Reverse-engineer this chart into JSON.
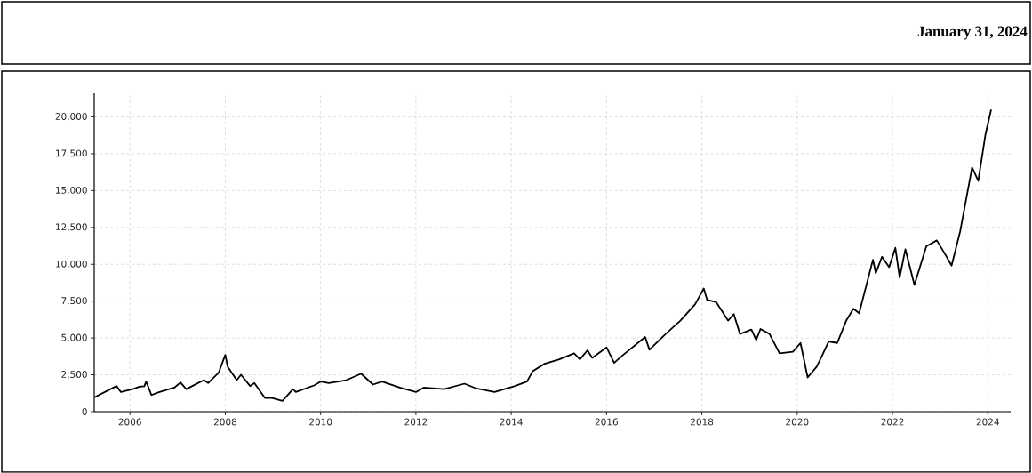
{
  "chart_data": {
    "type": "line",
    "title": "January 31, 2024",
    "x": [
      2005.25,
      2005.72,
      2005.81,
      2006.06,
      2006.2,
      2006.3,
      2006.34,
      2006.45,
      2006.62,
      2006.93,
      2007.06,
      2007.18,
      2007.55,
      2007.64,
      2007.86,
      2008.0,
      2008.05,
      2008.24,
      2008.33,
      2008.52,
      2008.61,
      2008.83,
      2008.98,
      2009.2,
      2009.42,
      2009.48,
      2009.86,
      2010.0,
      2010.17,
      2010.54,
      2010.85,
      2011.1,
      2011.29,
      2011.66,
      2012.0,
      2012.16,
      2012.59,
      2013.02,
      2013.27,
      2013.65,
      2014.08,
      2014.33,
      2014.45,
      2014.7,
      2015.01,
      2015.32,
      2015.44,
      2015.6,
      2015.7,
      2016.0,
      2016.16,
      2016.31,
      2016.81,
      2016.9,
      2017.24,
      2017.55,
      2017.86,
      2018.04,
      2018.11,
      2018.3,
      2018.55,
      2018.67,
      2018.8,
      2019.04,
      2019.14,
      2019.23,
      2019.42,
      2019.63,
      2019.91,
      2020.07,
      2020.22,
      2020.41,
      2020.53,
      2020.66,
      2020.84,
      2021.03,
      2021.18,
      2021.3,
      2021.59,
      2021.65,
      2021.78,
      2021.93,
      2022.06,
      2022.15,
      2022.27,
      2022.46,
      2022.71,
      2022.93,
      2023.08,
      2023.24,
      2023.42,
      2023.67,
      2023.8,
      2023.95,
      2024.07
    ],
    "values": [
      970,
      1740,
      1330,
      1530,
      1700,
      1730,
      2040,
      1130,
      1330,
      1630,
      1980,
      1530,
      2140,
      1940,
      2640,
      3850,
      3050,
      2140,
      2500,
      1740,
      1940,
      930,
      930,
      730,
      1530,
      1330,
      1780,
      2040,
      1940,
      2140,
      2580,
      1840,
      2040,
      1630,
      1330,
      1630,
      1530,
      1900,
      1570,
      1330,
      1740,
      2040,
      2740,
      3250,
      3550,
      3960,
      3550,
      4160,
      3650,
      4360,
      3310,
      3750,
      5070,
      4200,
      5270,
      6180,
      7290,
      8360,
      7590,
      7430,
      6180,
      6620,
      5270,
      5570,
      4860,
      5610,
      5270,
      3960,
      4060,
      4660,
      2320,
      3050,
      3850,
      4760,
      4660,
      6180,
      6980,
      6680,
      10310,
      9400,
      10510,
      9810,
      11120,
      9100,
      11020,
      8600,
      11220,
      11620,
      10820,
      9910,
      12230,
      16570,
      15660,
      18790,
      20500
    ],
    "color": "#000000",
    "xlim": [
      2005.25,
      2024.48
    ],
    "ylim": [
      0,
      21600
    ],
    "xticks": [
      2006,
      2008,
      2010,
      2012,
      2014,
      2016,
      2018,
      2020,
      2022,
      2024
    ],
    "yticks": [
      0,
      {
        "value": 2500,
        "label": "2,500"
      },
      {
        "value": 5000,
        "label": "5,000"
      },
      {
        "value": 7500,
        "label": "7,500"
      },
      {
        "value": 10000,
        "label": "10,000"
      },
      {
        "value": 12500,
        "label": "12,500"
      },
      {
        "value": 15000,
        "label": "15,000"
      },
      {
        "value": 17500,
        "label": "17,500"
      },
      {
        "value": 20000,
        "label": "20,000"
      }
    ],
    "grid": true,
    "marker": "none",
    "line_style": "solid"
  }
}
